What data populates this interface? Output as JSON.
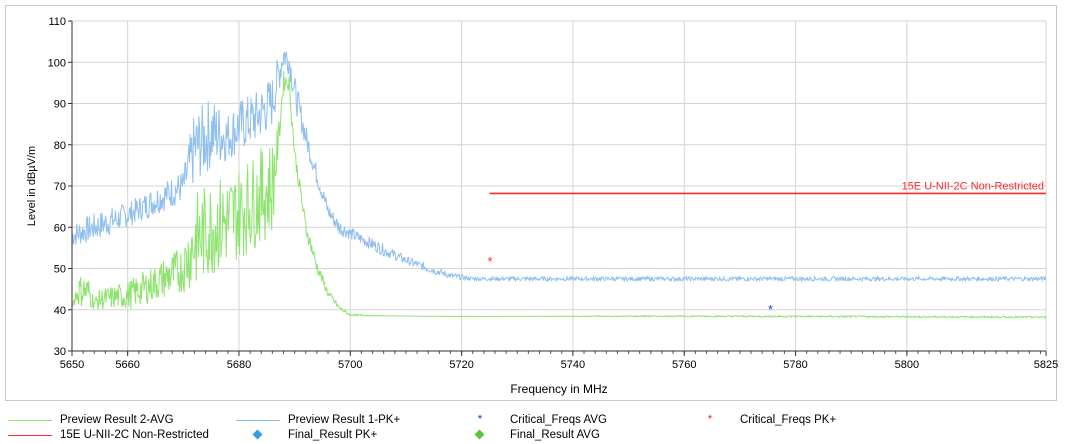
{
  "chart_data": {
    "type": "line",
    "xlabel": "Frequency in MHz",
    "ylabel": "Level in dBµV/m",
    "xlim": [
      5650,
      5825
    ],
    "ylim": [
      30,
      110
    ],
    "x_ticks": [
      5650,
      5660,
      5680,
      5700,
      5720,
      5740,
      5760,
      5780,
      5800,
      5825
    ],
    "y_ticks": [
      30,
      40,
      50,
      60,
      70,
      80,
      90,
      100,
      110
    ],
    "grid": true,
    "legend_position": "bottom",
    "series": [
      {
        "name": "Preview Result 1-PK+",
        "color": "#8fbfef",
        "points": [
          [
            5650,
            61
          ],
          [
            5655,
            64
          ],
          [
            5660,
            66
          ],
          [
            5665,
            70
          ],
          [
            5670,
            74
          ],
          [
            5672,
            88
          ],
          [
            5675,
            92
          ],
          [
            5678,
            88
          ],
          [
            5680,
            91
          ],
          [
            5683,
            93
          ],
          [
            5686,
            97
          ],
          [
            5688,
            106
          ],
          [
            5689,
            104
          ],
          [
            5690,
            97
          ],
          [
            5692,
            85
          ],
          [
            5694,
            75
          ],
          [
            5696,
            66
          ],
          [
            5698,
            62
          ],
          [
            5700,
            60
          ],
          [
            5703,
            58
          ],
          [
            5706,
            56
          ],
          [
            5710,
            53
          ],
          [
            5714,
            51
          ],
          [
            5718,
            49
          ],
          [
            5722,
            48
          ],
          [
            5725,
            48
          ],
          [
            5730,
            48
          ],
          [
            5740,
            48
          ],
          [
            5760,
            48
          ],
          [
            5780,
            48
          ],
          [
            5800,
            48
          ],
          [
            5825,
            48
          ]
        ],
        "band_low": [
          [
            5650,
            55
          ],
          [
            5655,
            57
          ],
          [
            5660,
            60
          ],
          [
            5665,
            63
          ],
          [
            5670,
            66
          ],
          [
            5672,
            70
          ],
          [
            5675,
            74
          ],
          [
            5678,
            76
          ],
          [
            5680,
            78
          ],
          [
            5683,
            80
          ],
          [
            5686,
            84
          ],
          [
            5688,
            98
          ],
          [
            5689,
            97
          ],
          [
            5690,
            89
          ],
          [
            5692,
            79
          ],
          [
            5694,
            70
          ],
          [
            5696,
            62
          ],
          [
            5698,
            58
          ],
          [
            5700,
            57
          ],
          [
            5703,
            55
          ],
          [
            5706,
            53
          ],
          [
            5710,
            51
          ],
          [
            5714,
            49
          ],
          [
            5718,
            47.5
          ],
          [
            5722,
            47
          ],
          [
            5825,
            47
          ]
        ]
      },
      {
        "name": "Preview Result 2-AVG",
        "color": "#8ee36f",
        "points": [
          [
            5650,
            41
          ],
          [
            5651,
            48
          ],
          [
            5652,
            49
          ],
          [
            5653,
            48
          ],
          [
            5654,
            43
          ],
          [
            5655,
            45
          ],
          [
            5660,
            47
          ],
          [
            5665,
            51
          ],
          [
            5670,
            56
          ],
          [
            5672,
            68
          ],
          [
            5675,
            72
          ],
          [
            5678,
            73
          ],
          [
            5680,
            75
          ],
          [
            5683,
            78
          ],
          [
            5686,
            82
          ],
          [
            5687,
            84
          ],
          [
            5688,
            98
          ],
          [
            5689,
            97
          ],
          [
            5690,
            80
          ],
          [
            5692,
            62
          ],
          [
            5694,
            52
          ],
          [
            5696,
            45
          ],
          [
            5698,
            41
          ],
          [
            5700,
            39
          ],
          [
            5705,
            38.6
          ],
          [
            5710,
            38.5
          ],
          [
            5720,
            38.3
          ],
          [
            5740,
            38.5
          ],
          [
            5760,
            38.6
          ],
          [
            5780,
            38.6
          ],
          [
            5800,
            38.5
          ],
          [
            5825,
            38.4
          ]
        ],
        "band_low": [
          [
            5650,
            41
          ],
          [
            5655,
            40
          ],
          [
            5660,
            40
          ],
          [
            5665,
            42
          ],
          [
            5670,
            44
          ],
          [
            5672,
            45
          ],
          [
            5675,
            48
          ],
          [
            5678,
            50
          ],
          [
            5680,
            52
          ],
          [
            5683,
            55
          ],
          [
            5686,
            58
          ],
          [
            5688,
            93
          ],
          [
            5689,
            93
          ],
          [
            5690,
            76
          ],
          [
            5692,
            58
          ],
          [
            5694,
            49
          ],
          [
            5696,
            43
          ],
          [
            5698,
            40
          ],
          [
            5700,
            38.5
          ],
          [
            5825,
            38
          ]
        ]
      }
    ],
    "limit_line": {
      "name": "15E U-NII-2C Non-Restricted",
      "color": "#ff2b2b",
      "x": [
        5725,
        5825
      ],
      "y": 68.2
    },
    "critical_markers": [
      {
        "name": "Critical_Freqs PK+",
        "x": 5725.1,
        "y": 51.8,
        "color": "#ff2b2b"
      },
      {
        "name": "Critical_Freqs AVG",
        "x": 5775.5,
        "y": 40.2,
        "color": "#1c3fd8"
      }
    ],
    "legend": [
      {
        "label": "Preview Result 2-AVG",
        "kind": "line",
        "color": "#8ee36f"
      },
      {
        "label": "Preview Result 1-PK+",
        "kind": "line",
        "color": "#8fbfef"
      },
      {
        "label": "Critical_Freqs AVG",
        "kind": "star",
        "color": "#1c3fd8"
      },
      {
        "label": "Critical_Freqs PK+",
        "kind": "star",
        "color": "#ff2b2b"
      },
      {
        "label": "15E U-NII-2C Non-Restricted",
        "kind": "line",
        "color": "#ff2b2b"
      },
      {
        "label": "Final_Result PK+",
        "kind": "diamond",
        "color": "#3b9be0"
      },
      {
        "label": "Final_Result AVG",
        "kind": "diamond",
        "color": "#5cc43c"
      }
    ]
  }
}
